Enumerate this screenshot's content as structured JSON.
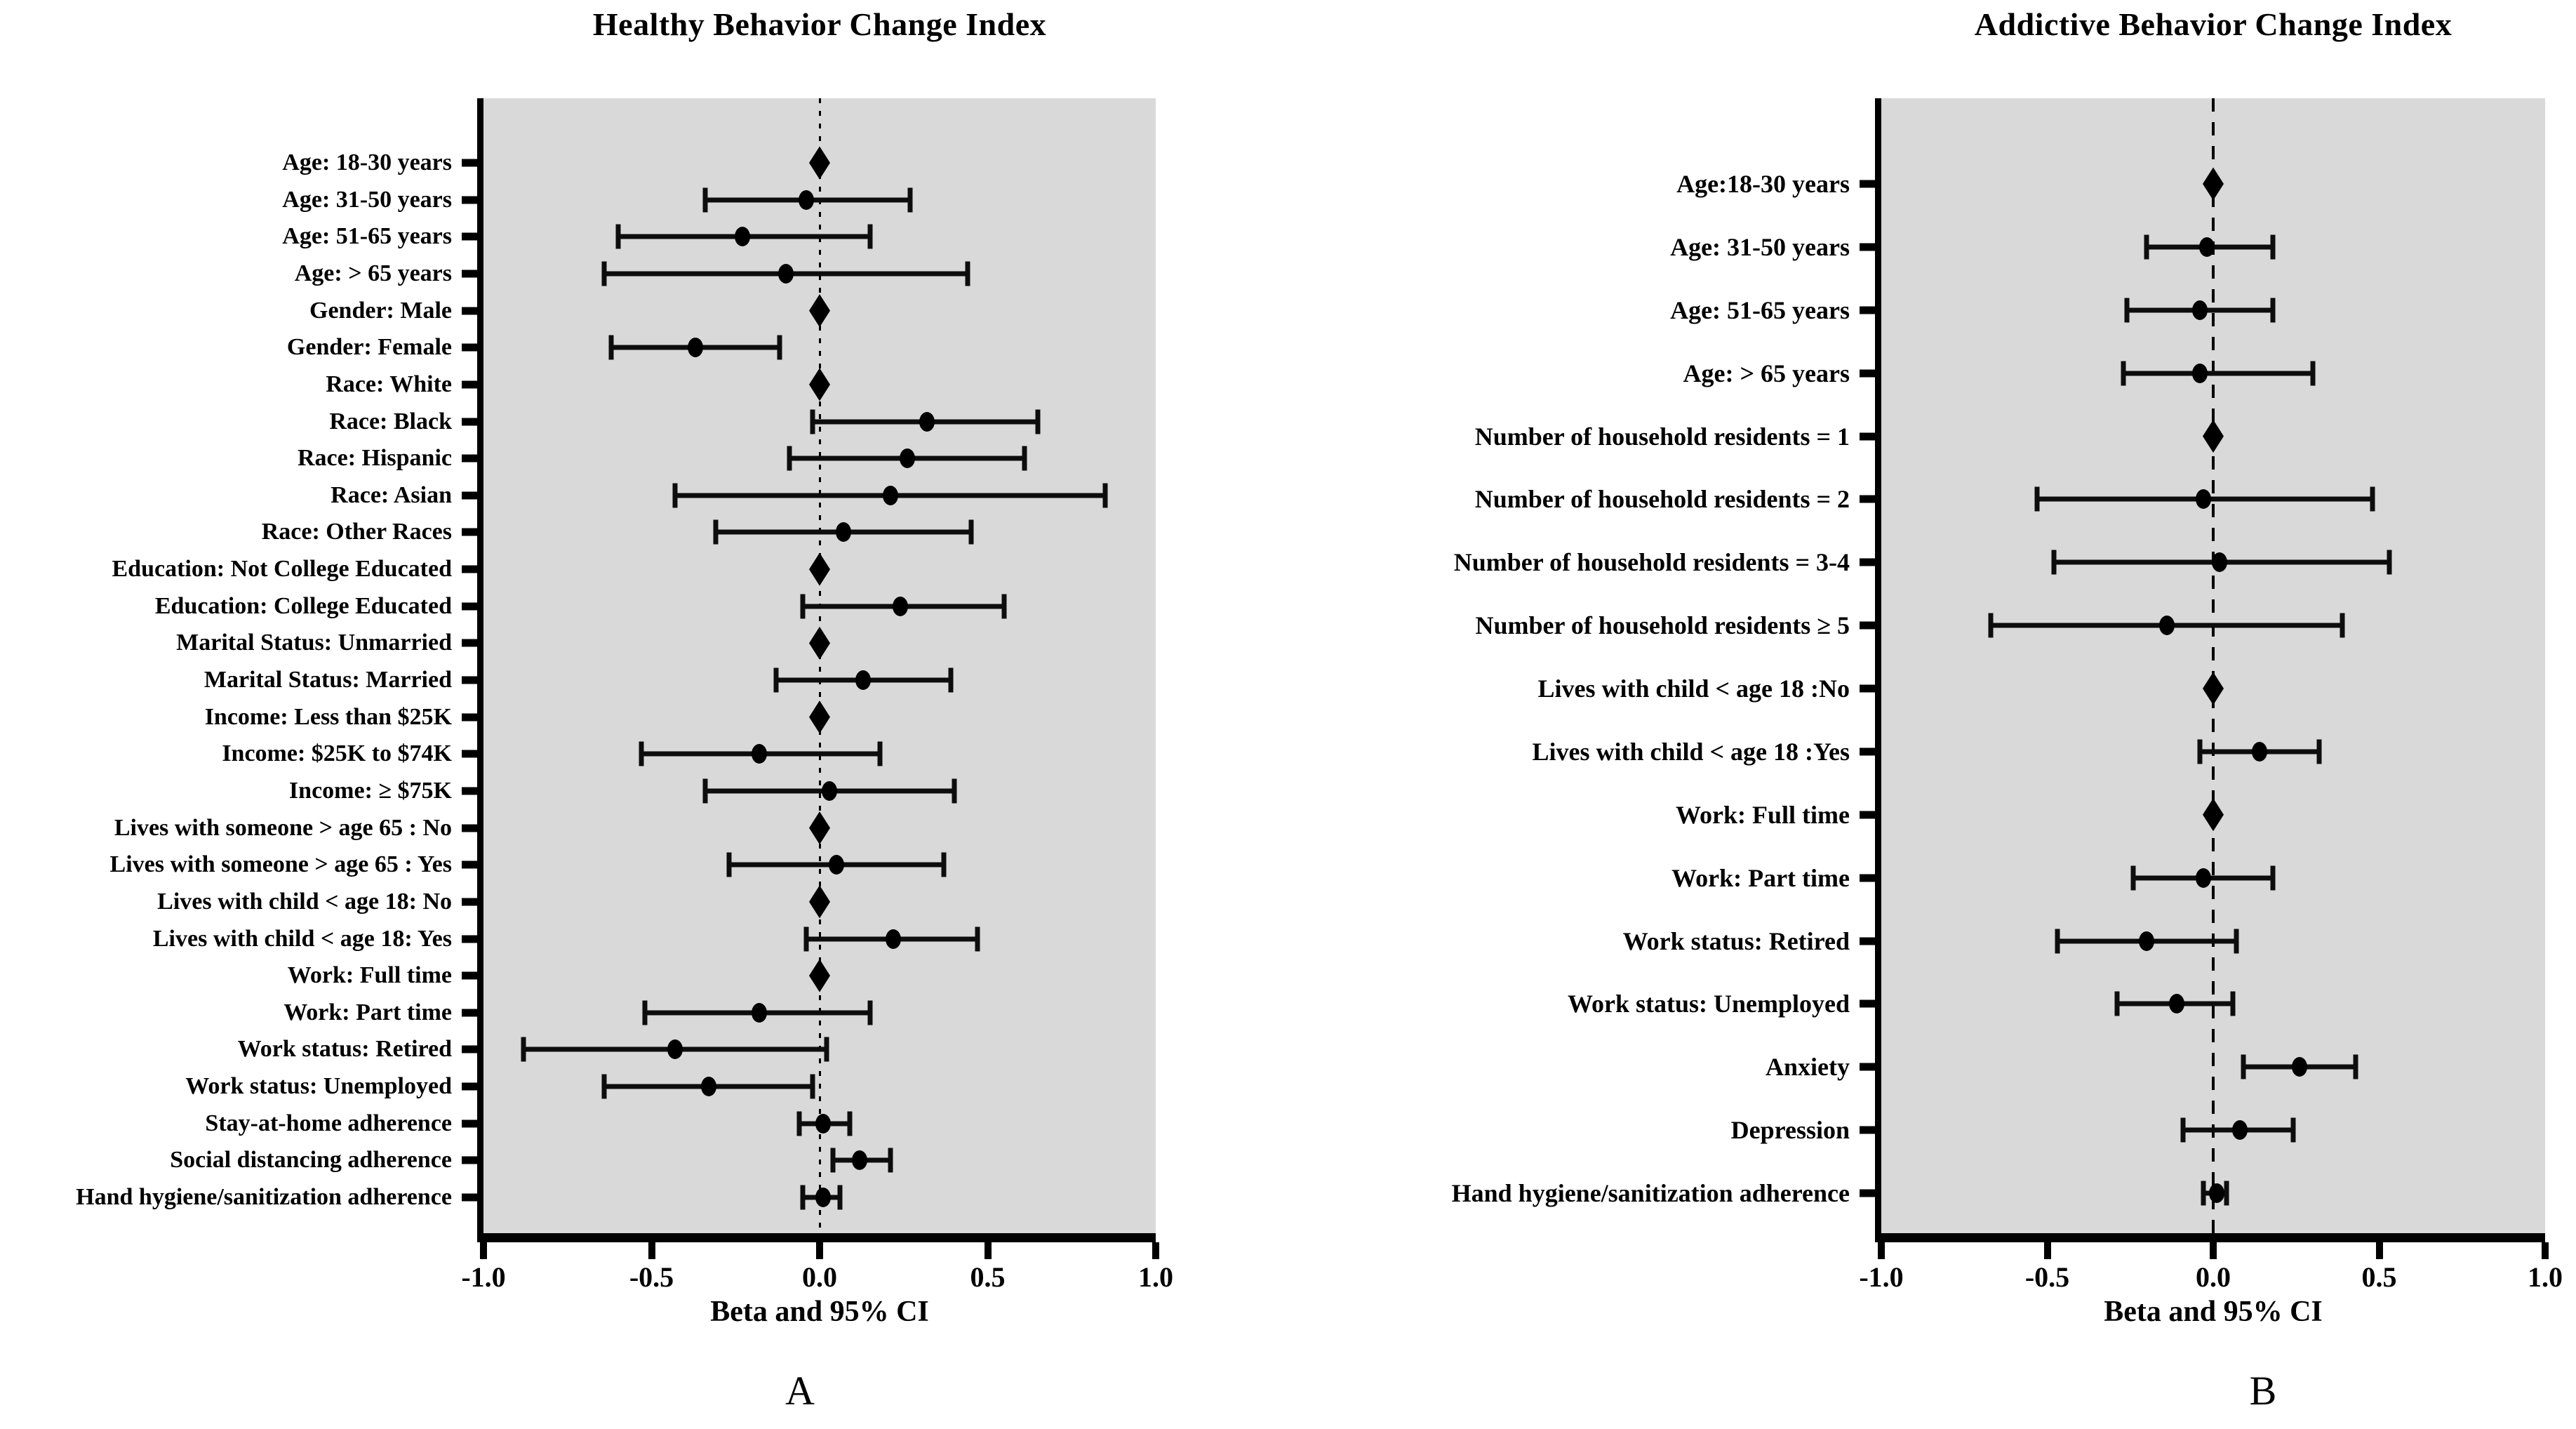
{
  "figure": {
    "colors": {
      "plot_background": "#d9d9d9",
      "ink": "#000000",
      "page_background": "#ffffff"
    }
  },
  "chart_data": [
    {
      "type": "scatter",
      "subtype": "forest_plot",
      "title": "Healthy Behavior Change Index",
      "xlabel": "Beta and 95% CI",
      "panel_label": "A",
      "legend": "none",
      "grid": false,
      "x_axis": {
        "min": -1.0,
        "max": 1.0,
        "ticks": [
          "-1.0",
          "-0.5",
          "0.0",
          "0.5",
          "1.0"
        ],
        "zero_line": "dotted"
      },
      "rows": [
        {
          "label": "Age: 18-30 years",
          "beta": 0.0,
          "ci_low": null,
          "ci_high": null,
          "reference": true
        },
        {
          "label": "Age: 31-50 years",
          "beta": -0.04,
          "ci_low": -0.34,
          "ci_high": 0.27,
          "reference": false
        },
        {
          "label": "Age: 51-65 years",
          "beta": -0.23,
          "ci_low": -0.6,
          "ci_high": 0.15,
          "reference": false
        },
        {
          "label": "Age: > 65 years",
          "beta": -0.1,
          "ci_low": -0.64,
          "ci_high": 0.44,
          "reference": false
        },
        {
          "label": "Gender: Male",
          "beta": 0.0,
          "ci_low": null,
          "ci_high": null,
          "reference": true
        },
        {
          "label": "Gender: Female",
          "beta": -0.37,
          "ci_low": -0.62,
          "ci_high": -0.12,
          "reference": false
        },
        {
          "label": "Race: White",
          "beta": 0.0,
          "ci_low": null,
          "ci_high": null,
          "reference": true
        },
        {
          "label": "Race: Black",
          "beta": 0.32,
          "ci_low": -0.02,
          "ci_high": 0.65,
          "reference": false
        },
        {
          "label": "Race: Hispanic",
          "beta": 0.26,
          "ci_low": -0.09,
          "ci_high": 0.61,
          "reference": false
        },
        {
          "label": "Race: Asian",
          "beta": 0.21,
          "ci_low": -0.43,
          "ci_high": 0.85,
          "reference": false
        },
        {
          "label": "Race: Other Races",
          "beta": 0.07,
          "ci_low": -0.31,
          "ci_high": 0.45,
          "reference": false
        },
        {
          "label": "Education: Not College Educated",
          "beta": 0.0,
          "ci_low": null,
          "ci_high": null,
          "reference": true
        },
        {
          "label": "Education: College Educated",
          "beta": 0.24,
          "ci_low": -0.05,
          "ci_high": 0.55,
          "reference": false
        },
        {
          "label": "Marital Status: Unmarried",
          "beta": 0.0,
          "ci_low": null,
          "ci_high": null,
          "reference": true
        },
        {
          "label": "Marital Status: Married",
          "beta": 0.13,
          "ci_low": -0.13,
          "ci_high": 0.39,
          "reference": false
        },
        {
          "label": "Income: Less than $25K",
          "beta": 0.0,
          "ci_low": null,
          "ci_high": null,
          "reference": true
        },
        {
          "label": "Income: $25K to $74K",
          "beta": -0.18,
          "ci_low": -0.53,
          "ci_high": 0.18,
          "reference": false
        },
        {
          "label": "Income: ≥ $75K",
          "beta": 0.03,
          "ci_low": -0.34,
          "ci_high": 0.4,
          "reference": false
        },
        {
          "label": "Lives with someone > age 65 : No",
          "beta": 0.0,
          "ci_low": null,
          "ci_high": null,
          "reference": true
        },
        {
          "label": "Lives with someone > age 65 : Yes",
          "beta": 0.05,
          "ci_low": -0.27,
          "ci_high": 0.37,
          "reference": false
        },
        {
          "label": "Lives with child < age 18: No",
          "beta": 0.0,
          "ci_low": null,
          "ci_high": null,
          "reference": true
        },
        {
          "label": "Lives with child < age 18: Yes",
          "beta": 0.22,
          "ci_low": -0.04,
          "ci_high": 0.47,
          "reference": false
        },
        {
          "label": "Work: Full time",
          "beta": 0.0,
          "ci_low": null,
          "ci_high": null,
          "reference": true
        },
        {
          "label": "Work: Part time",
          "beta": -0.18,
          "ci_low": -0.52,
          "ci_high": 0.15,
          "reference": false
        },
        {
          "label": "Work status: Retired",
          "beta": -0.43,
          "ci_low": -0.88,
          "ci_high": 0.02,
          "reference": false
        },
        {
          "label": "Work status: Unemployed",
          "beta": -0.33,
          "ci_low": -0.64,
          "ci_high": -0.02,
          "reference": false
        },
        {
          "label": "Stay-at-home adherence",
          "beta": 0.01,
          "ci_low": -0.06,
          "ci_high": 0.09,
          "reference": false
        },
        {
          "label": "Social distancing adherence",
          "beta": 0.12,
          "ci_low": 0.04,
          "ci_high": 0.21,
          "reference": false
        },
        {
          "label": "Hand hygiene/sanitization adherence",
          "beta": 0.01,
          "ci_low": -0.05,
          "ci_high": 0.06,
          "reference": false
        }
      ]
    },
    {
      "type": "scatter",
      "subtype": "forest_plot",
      "title": "Addictive Behavior Change Index",
      "xlabel": "Beta and 95% CI",
      "panel_label": "B",
      "legend": "none",
      "grid": false,
      "x_axis": {
        "min": -1.0,
        "max": 1.0,
        "ticks": [
          "-1.0",
          "-0.5",
          "0.0",
          "0.5",
          "1.0"
        ],
        "zero_line": "dashed"
      },
      "rows": [
        {
          "label": "Age:18-30 years",
          "beta": 0.0,
          "ci_low": null,
          "ci_high": null,
          "reference": true
        },
        {
          "label": "Age: 31-50 years",
          "beta": -0.02,
          "ci_low": -0.2,
          "ci_high": 0.18,
          "reference": false
        },
        {
          "label": "Age: 51-65 years",
          "beta": -0.04,
          "ci_low": -0.26,
          "ci_high": 0.18,
          "reference": false
        },
        {
          "label": "Age: > 65 years",
          "beta": -0.04,
          "ci_low": -0.27,
          "ci_high": 0.3,
          "reference": false
        },
        {
          "label": "Number of household residents = 1",
          "beta": 0.0,
          "ci_low": null,
          "ci_high": null,
          "reference": true
        },
        {
          "label": "Number of household residents = 2",
          "beta": -0.03,
          "ci_low": -0.53,
          "ci_high": 0.48,
          "reference": false
        },
        {
          "label": "Number of household residents = 3-4",
          "beta": 0.02,
          "ci_low": -0.48,
          "ci_high": 0.53,
          "reference": false
        },
        {
          "label": "Number of household residents ≥ 5",
          "beta": -0.14,
          "ci_low": -0.67,
          "ci_high": 0.39,
          "reference": false
        },
        {
          "label": "Lives with child < age 18 :No",
          "beta": 0.0,
          "ci_low": null,
          "ci_high": null,
          "reference": true
        },
        {
          "label": "Lives with child < age 18 :Yes",
          "beta": 0.14,
          "ci_low": -0.04,
          "ci_high": 0.32,
          "reference": false
        },
        {
          "label": "Work: Full time",
          "beta": 0.0,
          "ci_low": null,
          "ci_high": null,
          "reference": true
        },
        {
          "label": "Work: Part time",
          "beta": -0.03,
          "ci_low": -0.24,
          "ci_high": 0.18,
          "reference": false
        },
        {
          "label": "Work status: Retired",
          "beta": -0.2,
          "ci_low": -0.47,
          "ci_high": 0.07,
          "reference": false
        },
        {
          "label": "Work status: Unemployed",
          "beta": -0.11,
          "ci_low": -0.29,
          "ci_high": 0.06,
          "reference": false
        },
        {
          "label": "Anxiety",
          "beta": 0.26,
          "ci_low": 0.09,
          "ci_high": 0.43,
          "reference": false
        },
        {
          "label": "Depression",
          "beta": 0.08,
          "ci_low": -0.09,
          "ci_high": 0.24,
          "reference": false
        },
        {
          "label": "Hand hygiene/sanitization adherence",
          "beta": 0.01,
          "ci_low": -0.03,
          "ci_high": 0.04,
          "reference": false
        }
      ]
    }
  ]
}
